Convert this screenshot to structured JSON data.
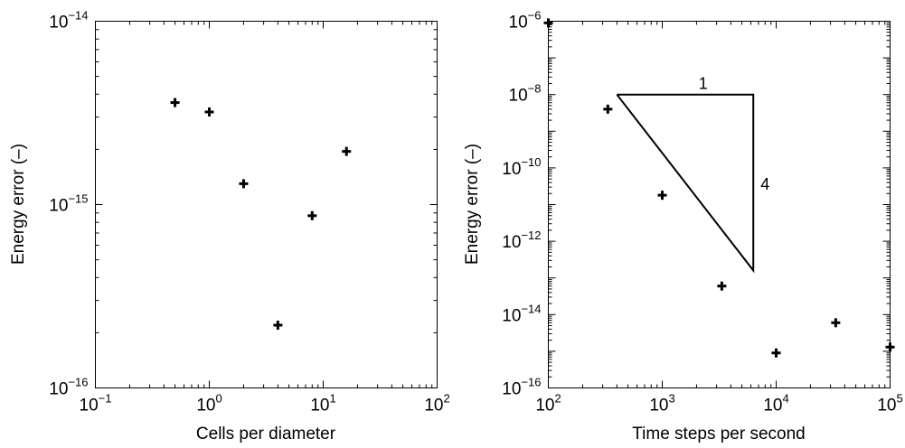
{
  "chart_data": [
    {
      "type": "scatter",
      "xscale": "log",
      "yscale": "log",
      "xlabel": "Cells per diameter",
      "ylabel": "Energy error (–)",
      "xlim": [
        0.1,
        100
      ],
      "ylim": [
        1e-16,
        1e-14
      ],
      "x_ticks": [
        {
          "base": "10",
          "exp": "−1"
        },
        {
          "base": "10",
          "exp": "0"
        },
        {
          "base": "10",
          "exp": "1"
        },
        {
          "base": "10",
          "exp": "2"
        }
      ],
      "y_ticks": [
        {
          "base": "10",
          "exp": "−16"
        },
        {
          "base": "10",
          "exp": "−15"
        },
        {
          "base": "10",
          "exp": "−14"
        }
      ],
      "marker": "plus",
      "grid": false,
      "points": [
        {
          "x": 0.5,
          "y": 3.6e-15
        },
        {
          "x": 1,
          "y": 3.2e-15
        },
        {
          "x": 2,
          "y": 1.3e-15
        },
        {
          "x": 4,
          "y": 2.2e-16
        },
        {
          "x": 8,
          "y": 8.7e-16
        },
        {
          "x": 16,
          "y": 1.95e-15
        }
      ]
    },
    {
      "type": "scatter",
      "xscale": "log",
      "yscale": "log",
      "xlabel": "Time steps per second",
      "ylabel": "Energy error (–)",
      "xlim": [
        100,
        100000
      ],
      "ylim": [
        1e-16,
        1e-06
      ],
      "x_ticks": [
        {
          "base": "10",
          "exp": "2"
        },
        {
          "base": "10",
          "exp": "3"
        },
        {
          "base": "10",
          "exp": "4"
        },
        {
          "base": "10",
          "exp": "5"
        }
      ],
      "y_ticks": [
        {
          "base": "10",
          "exp": "−16"
        },
        {
          "base": "10",
          "exp": "−14"
        },
        {
          "base": "10",
          "exp": "−12"
        },
        {
          "base": "10",
          "exp": "−10"
        },
        {
          "base": "10",
          "exp": "−8"
        },
        {
          "base": "10",
          "exp": "−6"
        }
      ],
      "marker": "plus",
      "grid": false,
      "points": [
        {
          "x": 100,
          "y": 9e-07
        },
        {
          "x": 333,
          "y": 4e-09
        },
        {
          "x": 1000,
          "y": 1.8e-11
        },
        {
          "x": 3333,
          "y": 6e-14
        },
        {
          "x": 10000,
          "y": 9e-16
        },
        {
          "x": 33333,
          "y": 6e-15
        },
        {
          "x": 100000,
          "y": 1.3e-15
        }
      ],
      "slope_triangle": {
        "x_start": 400,
        "x_end": 6300,
        "y_top": 1e-08,
        "y_bottom": 1.6e-13,
        "run_label": "1",
        "rise_label": "4"
      }
    }
  ]
}
